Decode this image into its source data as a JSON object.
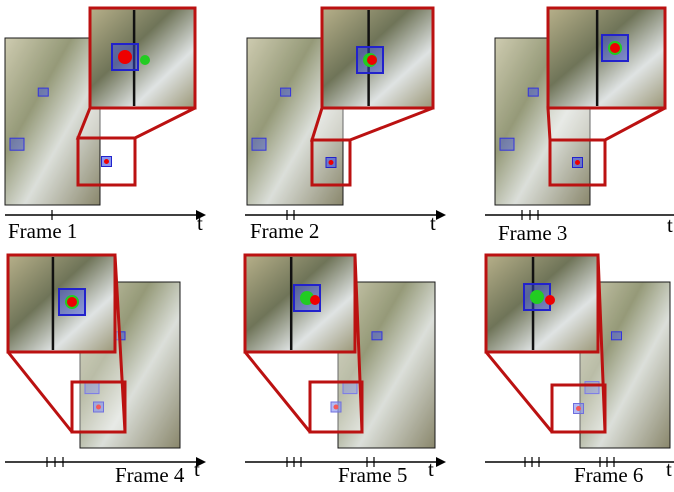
{
  "frames": [
    {
      "label": "Frame 1",
      "axis": "t"
    },
    {
      "label": "Frame 2",
      "axis": "t"
    },
    {
      "label": "Frame 3",
      "axis": "t"
    },
    {
      "label": "Frame 4",
      "axis": "t"
    },
    {
      "label": "Frame 5",
      "axis": "t"
    },
    {
      "label": "Frame 6",
      "axis": "t"
    }
  ]
}
